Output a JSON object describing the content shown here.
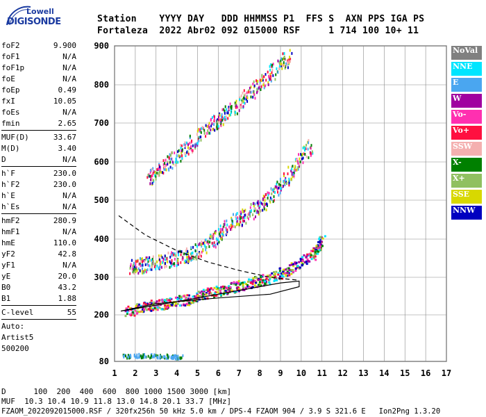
{
  "logo": {
    "top": "Lowell",
    "bottom": "DIGISONDE"
  },
  "header": {
    "line1": "Station    YYYY DAY   DDD HHMMSS P1  FFS S  AXN PPS IGA PS",
    "line2": "Fortaleza  2022 Abr02 092 015000 RSF     1 714 100 10+ 11"
  },
  "params": [
    {
      "label": "foF2",
      "value": "9.900"
    },
    {
      "label": "foF1",
      "value": "N/A"
    },
    {
      "label": "foF1p",
      "value": "N/A"
    },
    {
      "label": "foE",
      "value": "N/A"
    },
    {
      "label": "foEp",
      "value": "0.49"
    },
    {
      "label": "fxI",
      "value": "10.05"
    },
    {
      "label": "foEs",
      "value": "N/A"
    },
    {
      "label": "fmin",
      "value": "2.65"
    },
    {
      "sep": true
    },
    {
      "label": "MUF(D)",
      "value": "33.67"
    },
    {
      "label": "M(D)",
      "value": "3.40"
    },
    {
      "label": "D",
      "value": "N/A"
    },
    {
      "sep": true
    },
    {
      "label": "h`F",
      "value": "230.0"
    },
    {
      "label": "h`F2",
      "value": "230.0"
    },
    {
      "label": "h`E",
      "value": "N/A"
    },
    {
      "label": "h`Es",
      "value": "N/A"
    },
    {
      "sep": true
    },
    {
      "label": "hmF2",
      "value": "280.9"
    },
    {
      "label": "hmF1",
      "value": "N/A"
    },
    {
      "label": "hmE",
      "value": "110.0"
    },
    {
      "label": "yF2",
      "value": "42.8"
    },
    {
      "label": "yF1",
      "value": "N/A"
    },
    {
      "label": "yE",
      "value": "20.0"
    },
    {
      "label": "B0",
      "value": "43.2"
    },
    {
      "label": "B1",
      "value": "1.88"
    },
    {
      "sep": true
    },
    {
      "label": "C-level",
      "value": "55"
    },
    {
      "sep": true
    },
    {
      "text": "Auto:"
    },
    {
      "text": "Artist5"
    },
    {
      "text": "500200"
    }
  ],
  "legend": [
    {
      "label": "NoVal",
      "color": "#808080"
    },
    {
      "label": "NNE",
      "color": "#00e5ff"
    },
    {
      "label": "E",
      "color": "#4aa6f0"
    },
    {
      "label": "W",
      "color": "#a000a0"
    },
    {
      "label": "Vo-",
      "color": "#ff30b0"
    },
    {
      "label": "Vo+",
      "color": "#ff1040"
    },
    {
      "label": "SSW",
      "color": "#f4b0b0"
    },
    {
      "label": "X-",
      "color": "#008000"
    },
    {
      "label": "X+",
      "color": "#90c060"
    },
    {
      "label": "SSE",
      "color": "#d8d800"
    },
    {
      "label": "NNW",
      "color": "#0000c0"
    }
  ],
  "bottom": {
    "line1": "D      100  200  400  600  800 1000 1500 3000 [km]",
    "line2": "MUF  10.3 10.4 10.9 11.8 13.0 14.8 20.1 33.7 [MHz]",
    "line3": "FZAOM_2022092015000.RSF / 320fx256h 50 kHz 5.0 km / DPS-4 FZAOM 904 / 3.9 S 321.6 E   Ion2Png 1.3.20"
  },
  "chart_data": {
    "type": "scatter",
    "x_ticks": [
      1,
      2,
      3,
      4,
      5,
      6,
      7,
      8,
      9,
      10,
      11,
      12,
      13,
      14,
      15,
      16,
      17
    ],
    "y_ticks": [
      80,
      200,
      300,
      400,
      500,
      600,
      700,
      800,
      900
    ],
    "xlim": [
      1,
      17
    ],
    "ylim": [
      80,
      900
    ],
    "grid": true,
    "traces": [
      {
        "name": "Es layer",
        "points": [
          [
            1.4,
            95
          ],
          [
            2.0,
            98
          ],
          [
            2.6,
            97
          ],
          [
            3.2,
            96
          ],
          [
            3.8,
            95
          ],
          [
            4.2,
            94
          ]
        ]
      },
      {
        "name": "F trace",
        "points": [
          [
            1.5,
            210
          ],
          [
            2.5,
            225
          ],
          [
            3.5,
            232
          ],
          [
            4.5,
            243
          ],
          [
            5.5,
            260
          ],
          [
            6.5,
            273
          ],
          [
            7.5,
            285
          ],
          [
            8.5,
            300
          ],
          [
            9.5,
            325
          ],
          [
            10.5,
            360
          ],
          [
            11.0,
            400
          ]
        ]
      },
      {
        "name": "F 2nd hop",
        "points": [
          [
            1.8,
            330
          ],
          [
            2.5,
            335
          ],
          [
            3.5,
            345
          ],
          [
            4.5,
            360
          ],
          [
            5.5,
            390
          ],
          [
            6.5,
            440
          ],
          [
            7.5,
            470
          ],
          [
            8.5,
            510
          ],
          [
            9.5,
            575
          ],
          [
            10.5,
            650
          ]
        ]
      },
      {
        "name": "F 3rd hop",
        "points": [
          [
            2.6,
            560
          ],
          [
            3.5,
            595
          ],
          [
            4.5,
            640
          ],
          [
            5.5,
            690
          ],
          [
            6.5,
            730
          ],
          [
            7.5,
            780
          ],
          [
            8.5,
            830
          ],
          [
            9.5,
            880
          ]
        ]
      }
    ],
    "profile_solid": [
      [
        1.3,
        210
      ],
      [
        4,
        235
      ],
      [
        7,
        265
      ],
      [
        9,
        285
      ],
      [
        9.9,
        290
      ],
      [
        9.9,
        275
      ],
      [
        8.5,
        255
      ],
      [
        6,
        245
      ],
      [
        3,
        230
      ],
      [
        1.3,
        210
      ]
    ],
    "profile_dashed": [
      [
        1.2,
        460
      ],
      [
        2.5,
        410
      ],
      [
        4,
        370
      ],
      [
        5.5,
        340
      ],
      [
        7,
        318
      ],
      [
        8.5,
        300
      ],
      [
        9.9,
        292
      ]
    ]
  }
}
